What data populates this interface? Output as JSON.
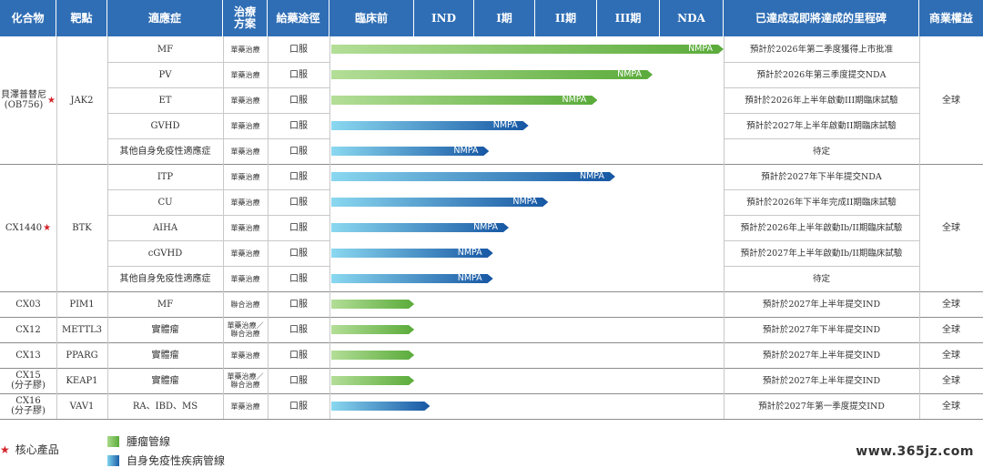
{
  "headers": {
    "compound": "化合物",
    "target": "靶點",
    "indication": "適應症",
    "therapy": "治療方案",
    "route": "給藥途徑",
    "preclinical": "臨床前",
    "ind": "IND",
    "ph1": "I期",
    "ph2": "II期",
    "ph3": "III期",
    "nda": "NDA",
    "milestone": "已達成或即將達成的里程碑",
    "rights": "商業權益"
  },
  "colors": {
    "header": "#2f6eb5",
    "oncology": "#7ac143",
    "autoimmune": "#1b5fa8",
    "star": "#d3232a"
  },
  "groups": [
    {
      "compound": "貝澤普替尼\n(OB756)",
      "core": true,
      "target": "JAK2",
      "rights": "全球"
    },
    {
      "compound": "CX1440",
      "core": true,
      "target": "BTK",
      "rights": "全球"
    },
    {
      "compound": "CX03",
      "core": false,
      "target": "PIM1",
      "rights": "全球"
    },
    {
      "compound": "CX12",
      "core": false,
      "target": "METTL3",
      "rights": "全球"
    },
    {
      "compound": "CX13",
      "core": false,
      "target": "PPARG",
      "rights": "全球"
    },
    {
      "compound": "CX15\n(分子膠)",
      "core": false,
      "target": "KEAP1",
      "rights": "全球"
    },
    {
      "compound": "CX16\n(分子膠)",
      "core": false,
      "target": "VAV1",
      "rights": "全球"
    }
  ],
  "rows": [
    {
      "indication": "MF",
      "therapy": "單藥治療",
      "route": "口服",
      "type": "oncology",
      "end": 1.0,
      "label": "NMPA",
      "milestone": "預計於2026年第二季度獲得上市批准"
    },
    {
      "indication": "PV",
      "therapy": "單藥治療",
      "route": "口服",
      "type": "oncology",
      "end": 0.82,
      "label": "NMPA",
      "milestone": "預計於2026年第三季度提交NDA"
    },
    {
      "indication": "ET",
      "therapy": "單藥治療",
      "route": "口服",
      "type": "oncology",
      "end": 0.68,
      "label": "NMPA",
      "milestone": "預計於2026年上半年啟動III期臨床試驗"
    },
    {
      "indication": "GVHD",
      "therapy": "單藥治療",
      "route": "口服",
      "type": "autoimmune",
      "end": 0.505,
      "label": "NMPA",
      "milestone": "預計於2027年上半年啟動II期臨床試驗"
    },
    {
      "indication": "其他自身免疫性適應症",
      "therapy": "單藥治療",
      "route": "口服",
      "type": "autoimmune",
      "end": 0.405,
      "label": "NMPA",
      "milestone": "待定"
    },
    {
      "indication": "ITP",
      "therapy": "單藥治療",
      "route": "口服",
      "type": "autoimmune",
      "end": 0.725,
      "label": "NMPA",
      "milestone": "預計於2027年下半年提交NDA"
    },
    {
      "indication": "CU",
      "therapy": "單藥治療",
      "route": "口服",
      "type": "autoimmune",
      "end": 0.555,
      "label": "NMPA",
      "milestone": "預計於2026年下半年完成II期臨床試驗"
    },
    {
      "indication": "AIHA",
      "therapy": "單藥治療",
      "route": "口服",
      "type": "autoimmune",
      "end": 0.455,
      "label": "NMPA",
      "milestone": "預計於2026年上半年啟動Ib/II期臨床試驗"
    },
    {
      "indication": "cGVHD",
      "therapy": "單藥治療",
      "route": "口服",
      "type": "autoimmune",
      "end": 0.415,
      "label": "NMPA",
      "milestone": "預計於2027年上半年啟動Ib/II期臨床試驗"
    },
    {
      "indication": "其他自身免疫性適應症",
      "therapy": "單藥治療",
      "route": "口服",
      "type": "autoimmune",
      "end": 0.415,
      "label": "NMPA",
      "milestone": "待定"
    },
    {
      "indication": "MF",
      "therapy": "聯合治療",
      "route": "口服",
      "type": "oncology",
      "end": 0.215,
      "label": "",
      "milestone": "預計於2027年上半年提交IND"
    },
    {
      "indication": "實體瘤",
      "therapy": "單藥治療／\n聯合治療",
      "route": "口服",
      "type": "oncology",
      "end": 0.215,
      "label": "",
      "milestone": "預計於2027年下半年提交IND"
    },
    {
      "indication": "實體瘤",
      "therapy": "單藥治療",
      "route": "口服",
      "type": "oncology",
      "end": 0.215,
      "label": "",
      "milestone": "預計於2027年上半年提交IND"
    },
    {
      "indication": "實體瘤",
      "therapy": "單藥治療／\n聯合治療",
      "route": "口服",
      "type": "oncology",
      "end": 0.215,
      "label": "",
      "milestone": "預計於2027年上半年提交IND"
    },
    {
      "indication": "RA、IBD、MS",
      "therapy": "單藥治療",
      "route": "口服",
      "type": "autoimmune",
      "end": 0.255,
      "label": "",
      "milestone": "預計於2027年第一季度提交IND"
    }
  ],
  "legend": {
    "core": "核心產品",
    "oncology": "腫瘤管線",
    "autoimmune": "自身免疫性疾病管線"
  },
  "watermark": "www.365jz.com"
}
